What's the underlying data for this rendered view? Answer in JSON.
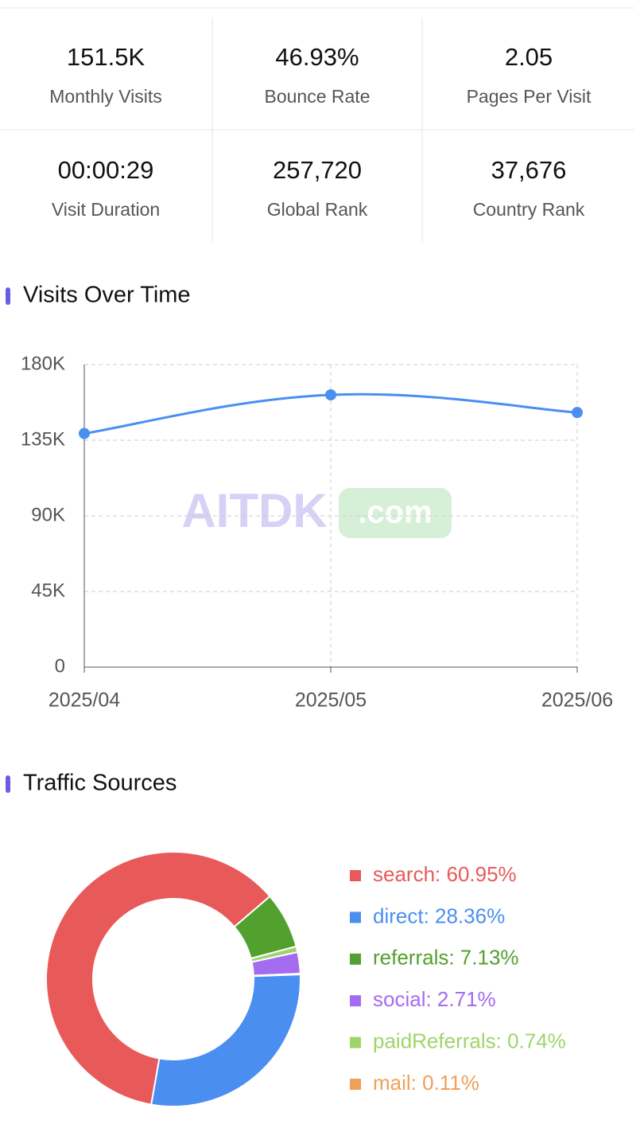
{
  "stats": [
    {
      "value": "151.5K",
      "label": "Monthly Visits"
    },
    {
      "value": "46.93%",
      "label": "Bounce Rate"
    },
    {
      "value": "2.05",
      "label": "Pages Per Visit"
    },
    {
      "value": "00:00:29",
      "label": "Visit Duration"
    },
    {
      "value": "257,720",
      "label": "Global Rank"
    },
    {
      "value": "37,676",
      "label": "Country Rank"
    }
  ],
  "watermark": [
    "AITDK",
    ".com"
  ],
  "chart_data": [
    {
      "type": "line",
      "title": "Visits Over Time",
      "x": [
        "2025/04",
        "2025/05",
        "2025/06"
      ],
      "series": [
        {
          "color": "#4a8ff0",
          "values": [
            139000,
            162000,
            151500
          ]
        }
      ],
      "ylim": [
        0,
        180000
      ],
      "yticks": [
        0,
        {
          "value": 45000,
          "label": "45K"
        },
        {
          "value": 90000,
          "label": "90K"
        },
        {
          "value": 135000,
          "label": "135K"
        },
        {
          "value": 180000,
          "label": "180K"
        }
      ],
      "grid": true
    },
    {
      "type": "pie",
      "title": "Traffic Sources",
      "values": [
        60.95,
        28.36,
        7.13,
        2.71,
        0.74,
        0.11
      ],
      "value_labels": [
        "search: 60.95%",
        "direct: 28.36%",
        "referrals: 7.13%",
        "social: 2.71%",
        "paidReferrals: 0.74%",
        "mail: 0.11%"
      ],
      "colors": [
        "#e85a5a",
        "#4a8ff0",
        "#52a02e",
        "#a56cf2",
        "#9fd46c",
        "#f0a05a"
      ]
    }
  ]
}
